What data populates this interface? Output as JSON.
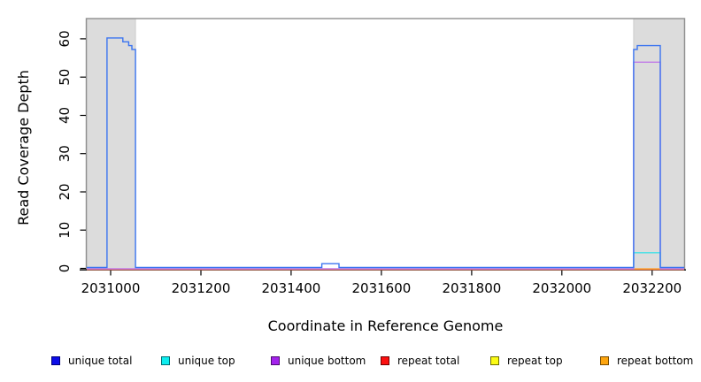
{
  "axis_labels": {
    "x": "Coordinate in Reference Genome",
    "y": "Read Coverage Depth"
  },
  "legend": {
    "items": [
      {
        "label": "unique total",
        "swatch_fill": "#0d0de8",
        "swatch_border": "#00007a"
      },
      {
        "label": "unique top",
        "swatch_fill": "#0dedef",
        "swatch_border": "#006e74"
      },
      {
        "label": "unique bottom",
        "swatch_fill": "#a322ec",
        "swatch_border": "#4d0b70"
      },
      {
        "label": "repeat total",
        "swatch_fill": "#fb1010",
        "swatch_border": "#700000"
      },
      {
        "label": "repeat top",
        "swatch_fill": "#fbfb14",
        "swatch_border": "#6e6e00"
      },
      {
        "label": "repeat bottom",
        "swatch_fill": "#fda githubusercontent50f",
        "swatch_border": "#7a4c00"
      }
    ]
  },
  "chart_data": {
    "type": "line",
    "title": "",
    "xlabel": "Coordinate in Reference Genome",
    "ylabel": "Read Coverage Depth",
    "xlim": [
      2030947,
      2032271
    ],
    "ylim": [
      0,
      65.3
    ],
    "xticks": [
      2031000,
      2031200,
      2031400,
      2031600,
      2031800,
      2032000,
      2032200
    ],
    "yticks": [
      0,
      10,
      20,
      30,
      40,
      50,
      60
    ],
    "grid": false,
    "legend_position": "bottom",
    "frame_color": "#8f8f8f",
    "shaded_regions": [
      {
        "x0": 2030947,
        "x1": 2031055,
        "color": "#dcdcdc"
      },
      {
        "x0": 2032159,
        "x1": 2032271,
        "color": "#dcdcdc"
      }
    ],
    "series": [
      {
        "name": "repeat top",
        "line_color": "#f5f50a",
        "baseline_drawn": true,
        "segments": []
      },
      {
        "name": "repeat total",
        "line_color": "#ff6a6a",
        "baseline_drawn": true,
        "segments": [
          [
            2031000,
            2031055,
            0
          ],
          [
            2031468,
            2031506,
            0
          ]
        ]
      },
      {
        "name": "repeat bottom",
        "line_color": "#ff9d20",
        "baseline_drawn": false,
        "segments": [
          [
            2032161,
            2032218,
            0
          ]
        ]
      },
      {
        "name": "unique bottom",
        "line_color": "#c07ae8",
        "baseline_drawn": true,
        "segments": [
          [
            2032159,
            2032218,
            54
          ]
        ]
      },
      {
        "name": "unique top",
        "line_color": "#40e0e6",
        "baseline_drawn": false,
        "segments": [
          [
            2032159,
            2032218,
            4
          ]
        ]
      },
      {
        "name": "unique total",
        "line_color": "#3b74f0",
        "baseline_drawn": true,
        "segments": [
          [
            2030992,
            2031027,
            60
          ],
          [
            2031027,
            2031040,
            59
          ],
          [
            2031040,
            2031047,
            58
          ],
          [
            2031047,
            2031055,
            57
          ],
          [
            2031468,
            2031506,
            1
          ],
          [
            2032159,
            2032167,
            57
          ],
          [
            2032167,
            2032218,
            58
          ]
        ]
      }
    ]
  }
}
